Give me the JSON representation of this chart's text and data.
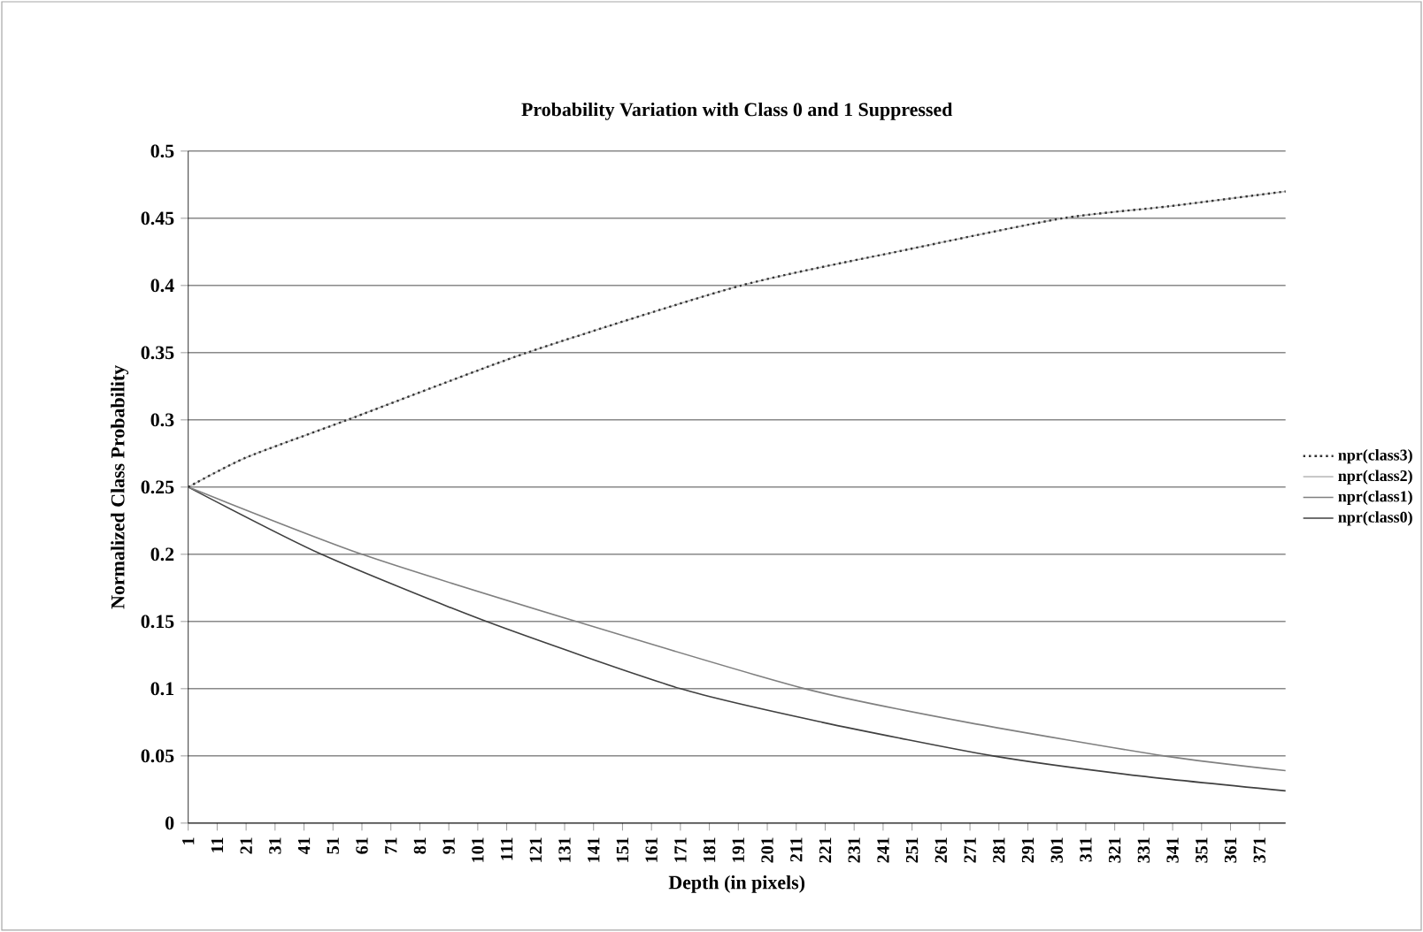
{
  "chart_data": {
    "type": "line",
    "title": "Probability Variation with Class 0 and 1 Suppressed",
    "xlabel": "Depth (in pixels)",
    "ylabel": "Normalized Class Probability",
    "xlim": [
      1,
      380
    ],
    "xticks": [
      1,
      11,
      21,
      31,
      41,
      51,
      61,
      71,
      81,
      91,
      101,
      111,
      121,
      131,
      141,
      151,
      161,
      171,
      181,
      191,
      201,
      211,
      221,
      231,
      241,
      251,
      261,
      271,
      281,
      291,
      301,
      311,
      321,
      331,
      341,
      351,
      361,
      371
    ],
    "ylim": [
      0,
      0.5
    ],
    "yticks": [
      0,
      0.05,
      0.1,
      0.15,
      0.2,
      0.25,
      0.3,
      0.35,
      0.4,
      0.45,
      0.5
    ],
    "grid": "y",
    "legend": "right",
    "marker": "none",
    "series": [
      {
        "name": "npr(class3)",
        "color": "#333333",
        "line_style": "dotted",
        "x": [
          1,
          21,
          56,
          118,
          192,
          250,
          303,
          340,
          380
        ],
        "values": [
          0.25,
          0.272,
          0.3,
          0.35,
          0.4,
          0.427,
          0.45,
          0.459,
          0.47
        ]
      },
      {
        "name": "npr(class2)",
        "color": "#c0c0c0",
        "line_style": "solid",
        "x": [
          1,
          21,
          56,
          118,
          192,
          250,
          303,
          340,
          380
        ],
        "values": [
          0.25,
          0.272,
          0.3,
          0.35,
          0.4,
          0.427,
          0.45,
          0.459,
          0.47
        ]
      },
      {
        "name": "npr(class1)",
        "color": "#808080",
        "line_style": "solid",
        "x": [
          1,
          61,
          135,
          214,
          270,
          338,
          380
        ],
        "values": [
          0.25,
          0.2,
          0.15,
          0.1,
          0.075,
          0.05,
          0.039
        ]
      },
      {
        "name": "npr(class0)",
        "color": "#404040",
        "line_style": "solid",
        "x": [
          1,
          47,
          104,
          171,
          220,
          279,
          330,
          380
        ],
        "values": [
          0.25,
          0.2,
          0.15,
          0.1,
          0.075,
          0.05,
          0.035,
          0.024
        ]
      }
    ]
  }
}
